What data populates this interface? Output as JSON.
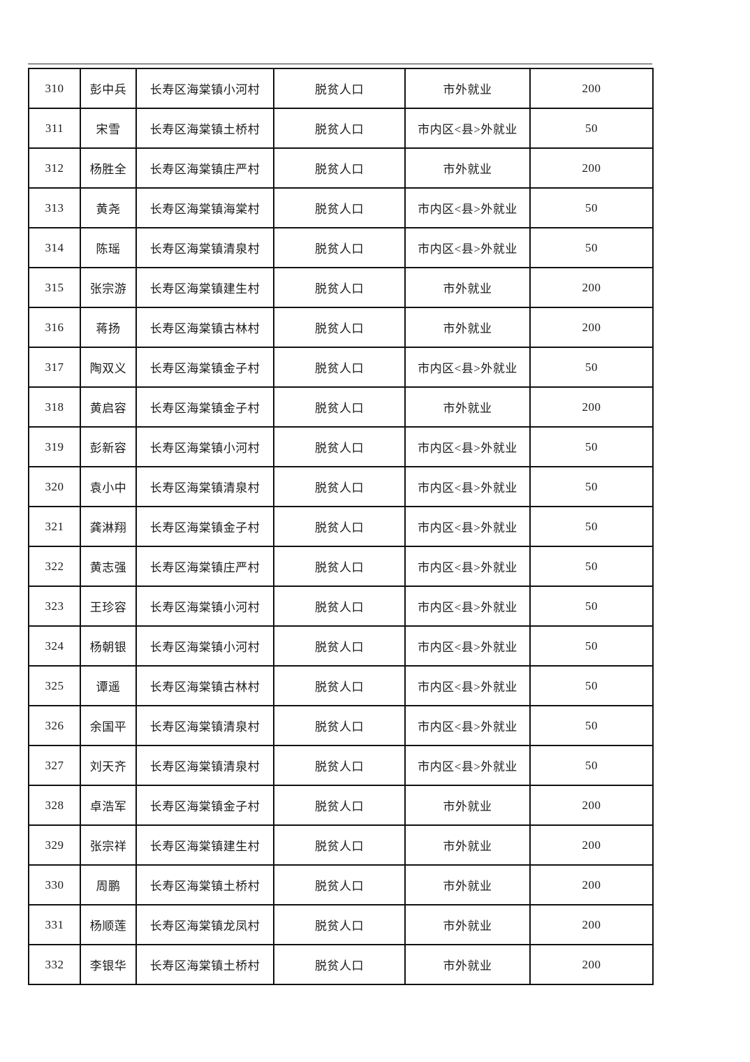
{
  "colors": {
    "page_background": "#ffffff",
    "border": "#111111",
    "text": "#1b1b1b"
  },
  "table": {
    "columns": [
      {
        "key": "index"
      },
      {
        "key": "name"
      },
      {
        "key": "village"
      },
      {
        "key": "category"
      },
      {
        "key": "employment"
      },
      {
        "key": "amount"
      }
    ],
    "rows": [
      [
        "310",
        "彭中兵",
        "长寿区海棠镇小河村",
        "脱贫人口",
        "市外就业",
        "200"
      ],
      [
        "311",
        "宋雪",
        "长寿区海棠镇土桥村",
        "脱贫人口",
        "市内区<县>外就业",
        "50"
      ],
      [
        "312",
        "杨胜全",
        "长寿区海棠镇庄严村",
        "脱贫人口",
        "市外就业",
        "200"
      ],
      [
        "313",
        "黄尧",
        "长寿区海棠镇海棠村",
        "脱贫人口",
        "市内区<县>外就业",
        "50"
      ],
      [
        "314",
        "陈瑶",
        "长寿区海棠镇清泉村",
        "脱贫人口",
        "市内区<县>外就业",
        "50"
      ],
      [
        "315",
        "张宗游",
        "长寿区海棠镇建生村",
        "脱贫人口",
        "市外就业",
        "200"
      ],
      [
        "316",
        "蒋扬",
        "长寿区海棠镇古林村",
        "脱贫人口",
        "市外就业",
        "200"
      ],
      [
        "317",
        "陶双义",
        "长寿区海棠镇金子村",
        "脱贫人口",
        "市内区<县>外就业",
        "50"
      ],
      [
        "318",
        "黄启容",
        "长寿区海棠镇金子村",
        "脱贫人口",
        "市外就业",
        "200"
      ],
      [
        "319",
        "彭新容",
        "长寿区海棠镇小河村",
        "脱贫人口",
        "市内区<县>外就业",
        "50"
      ],
      [
        "320",
        "袁小中",
        "长寿区海棠镇清泉村",
        "脱贫人口",
        "市内区<县>外就业",
        "50"
      ],
      [
        "321",
        "龚淋翔",
        "长寿区海棠镇金子村",
        "脱贫人口",
        "市内区<县>外就业",
        "50"
      ],
      [
        "322",
        "黄志强",
        "长寿区海棠镇庄严村",
        "脱贫人口",
        "市内区<县>外就业",
        "50"
      ],
      [
        "323",
        "王珍容",
        "长寿区海棠镇小河村",
        "脱贫人口",
        "市内区<县>外就业",
        "50"
      ],
      [
        "324",
        "杨朝银",
        "长寿区海棠镇小河村",
        "脱贫人口",
        "市内区<县>外就业",
        "50"
      ],
      [
        "325",
        "谭遥",
        "长寿区海棠镇古林村",
        "脱贫人口",
        "市内区<县>外就业",
        "50"
      ],
      [
        "326",
        "余国平",
        "长寿区海棠镇清泉村",
        "脱贫人口",
        "市内区<县>外就业",
        "50"
      ],
      [
        "327",
        "刘天齐",
        "长寿区海棠镇清泉村",
        "脱贫人口",
        "市内区<县>外就业",
        "50"
      ],
      [
        "328",
        "卓浩军",
        "长寿区海棠镇金子村",
        "脱贫人口",
        "市外就业",
        "200"
      ],
      [
        "329",
        "张宗祥",
        "长寿区海棠镇建生村",
        "脱贫人口",
        "市外就业",
        "200"
      ],
      [
        "330",
        "周鹏",
        "长寿区海棠镇土桥村",
        "脱贫人口",
        "市外就业",
        "200"
      ],
      [
        "331",
        "杨顺莲",
        "长寿区海棠镇龙凤村",
        "脱贫人口",
        "市外就业",
        "200"
      ],
      [
        "332",
        "李银华",
        "长寿区海棠镇土桥村",
        "脱贫人口",
        "市外就业",
        "200"
      ]
    ]
  }
}
